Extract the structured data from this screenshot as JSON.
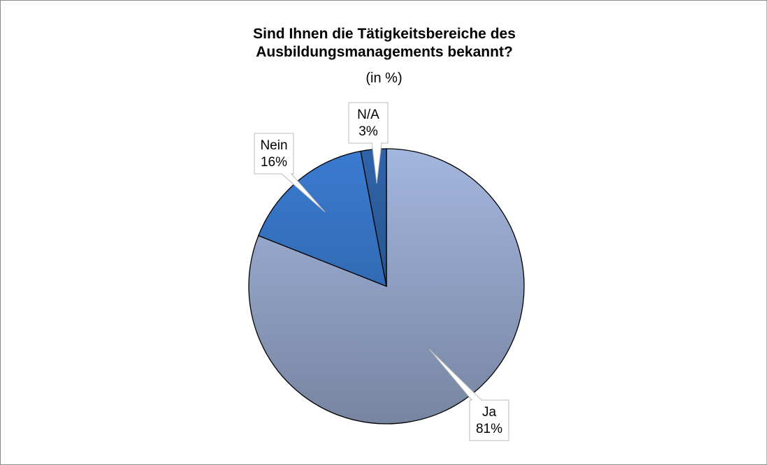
{
  "chart_data": {
    "type": "pie",
    "title": "Sind Ihnen die Tätigkeitsbereiche des Ausbildungsmanagements bekannt?",
    "subtitle": "(in %)",
    "categories": [
      "Ja",
      "Nein",
      "N/A"
    ],
    "values": [
      81,
      16,
      3
    ],
    "value_labels": [
      "81%",
      "16%",
      "3%"
    ],
    "colors": [
      "#a3b6dd",
      "#3a7bd0",
      "#2f63a8"
    ]
  }
}
